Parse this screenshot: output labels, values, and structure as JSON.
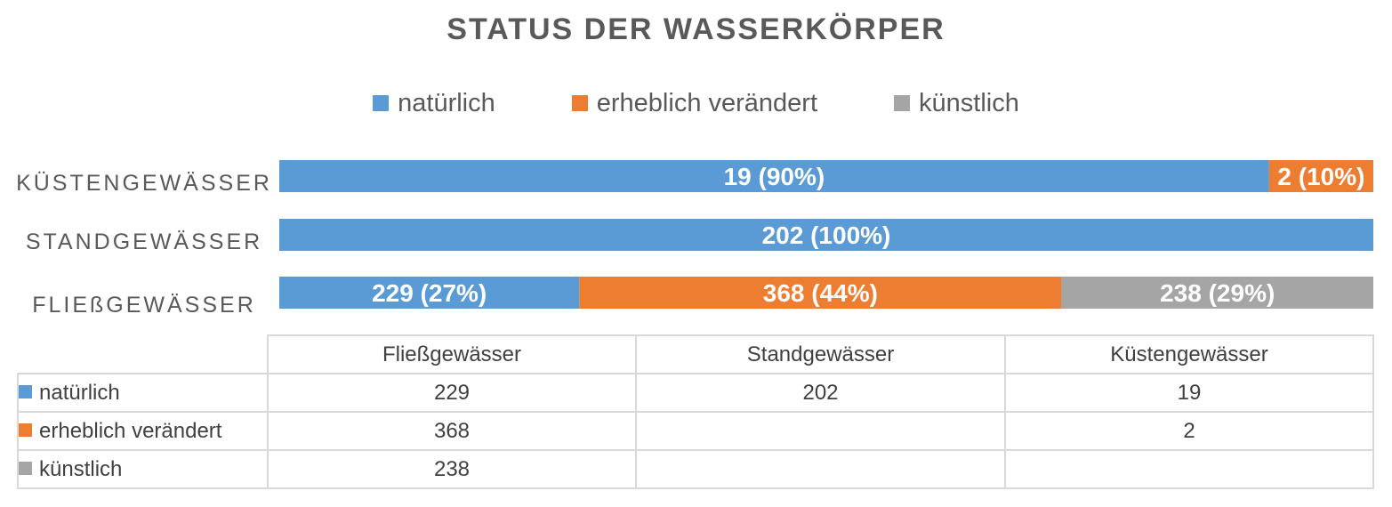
{
  "colors": {
    "natuerlich": "#5b9bd5",
    "erheblich": "#ed7d31",
    "kuenstlich": "#a5a5a5",
    "text": "#595959",
    "grid": "#d9d9d9"
  },
  "chart_data": {
    "type": "bar",
    "orientation": "horizontal",
    "stacking": "percent",
    "title": "STATUS DER WASSERKÖRPER",
    "categories": [
      "Küstengewässer",
      "Standgewässer",
      "Fließgewässer"
    ],
    "category_labels": [
      "KÜSTENGEWÄSSER",
      "STANDGEWÄSSER",
      "FLIEßGEWÄSSER"
    ],
    "series": [
      {
        "name": "natürlich",
        "color": "#5b9bd5",
        "values": [
          19,
          202,
          229
        ],
        "labels": [
          "19 (90%)",
          "202 (100%)",
          "229 (27%)"
        ]
      },
      {
        "name": "erheblich verändert",
        "color": "#ed7d31",
        "values": [
          2,
          null,
          368
        ],
        "labels": [
          "2 (10%)",
          "",
          "368 (44%)"
        ]
      },
      {
        "name": "künstlich",
        "color": "#a5a5a5",
        "values": [
          null,
          null,
          238
        ],
        "labels": [
          "",
          "",
          "238 (29%)"
        ]
      }
    ],
    "legend_position": "top",
    "grid": false,
    "data_table": {
      "columns": [
        "Fließgewässer",
        "Standgewässer",
        "Küstengewässer"
      ],
      "rows": [
        {
          "name": "natürlich",
          "values": [
            "229",
            "202",
            "19"
          ]
        },
        {
          "name": "erheblich verändert",
          "values": [
            "368",
            "",
            "2"
          ]
        },
        {
          "name": "künstlich",
          "values": [
            "238",
            "",
            ""
          ]
        }
      ]
    }
  }
}
